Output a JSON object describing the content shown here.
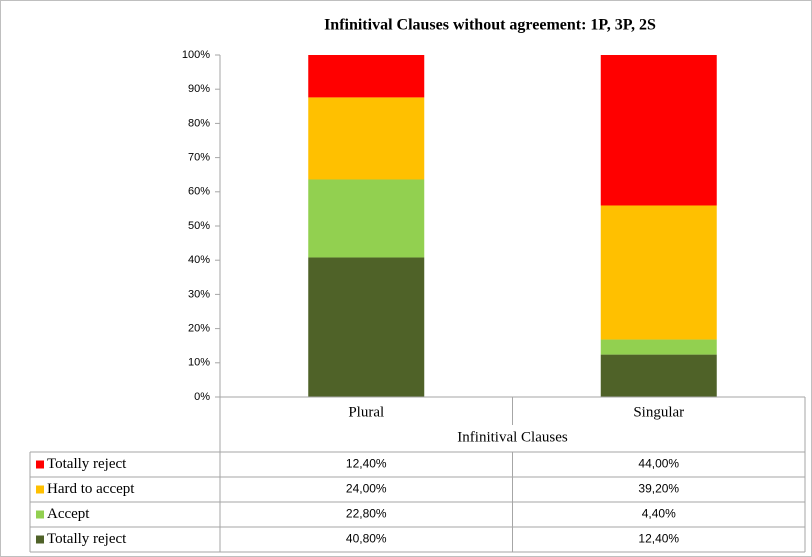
{
  "chart_data": {
    "type": "stacked_bar",
    "title": "Infinitival Clauses without agreement: 1P, 3P, 2S",
    "categories": [
      "Plural",
      "Singular"
    ],
    "xlabel": "Infinitival Clauses",
    "series": [
      {
        "name": "Totally reject",
        "color": "#ff0000",
        "values": [
          12.4,
          44.0
        ],
        "value_labels": [
          "12,40%",
          "44,00%"
        ]
      },
      {
        "name": "Hard to accept",
        "color": "#ffc000",
        "values": [
          24.0,
          39.2
        ],
        "value_labels": [
          "24,00%",
          "39,20%"
        ]
      },
      {
        "name": "Accept",
        "color": "#92d050",
        "values": [
          22.8,
          4.4
        ],
        "value_labels": [
          "22,80%",
          "4,40%"
        ]
      },
      {
        "name": "Totally reject",
        "color": "#4f6228",
        "values": [
          40.8,
          12.4
        ],
        "value_labels": [
          "40,80%",
          "12,40%"
        ]
      }
    ],
    "ylim": [
      0,
      100
    ],
    "yticks": [
      {
        "value": 0,
        "label": "0%"
      },
      {
        "value": 10,
        "label": "10%"
      },
      {
        "value": 20,
        "label": "20%"
      },
      {
        "value": 30,
        "label": "30%"
      },
      {
        "value": 40,
        "label": "40%"
      },
      {
        "value": 50,
        "label": "50%"
      },
      {
        "value": 60,
        "label": "60%"
      },
      {
        "value": 70,
        "label": "70%"
      },
      {
        "value": 80,
        "label": "80%"
      },
      {
        "value": 90,
        "label": "90%"
      },
      {
        "value": 100,
        "label": "100%"
      }
    ]
  }
}
